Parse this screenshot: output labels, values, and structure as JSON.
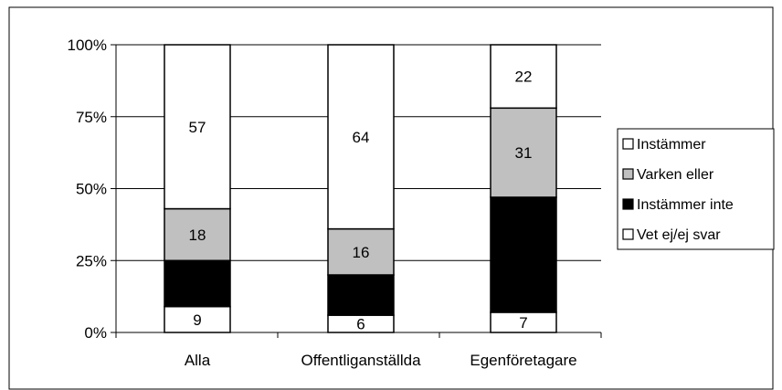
{
  "chart_data": {
    "type": "bar",
    "stacked": true,
    "normalized": true,
    "categories": [
      "Alla",
      "Offentliganställda",
      "Egenföretagare"
    ],
    "series": [
      {
        "name": "Vet ej/ej svar",
        "values": [
          9,
          6,
          7
        ],
        "color": "#ffffff"
      },
      {
        "name": "Instämmer inte",
        "values": [
          16,
          14,
          40
        ],
        "color": "#000000"
      },
      {
        "name": "Varken eller",
        "values": [
          18,
          16,
          31
        ],
        "color": "#c0c0c0"
      },
      {
        "name": "Instämmer",
        "values": [
          57,
          64,
          22
        ],
        "color": "#ffffff"
      }
    ],
    "legend_order": [
      "Instämmer",
      "Varken eller",
      "Instämmer inte",
      "Vet ej/ej svar"
    ],
    "y_ticks": [
      "0%",
      "25%",
      "50%",
      "75%",
      "100%"
    ],
    "ylim": [
      0,
      100
    ],
    "grid": true,
    "legend_position": "right"
  }
}
